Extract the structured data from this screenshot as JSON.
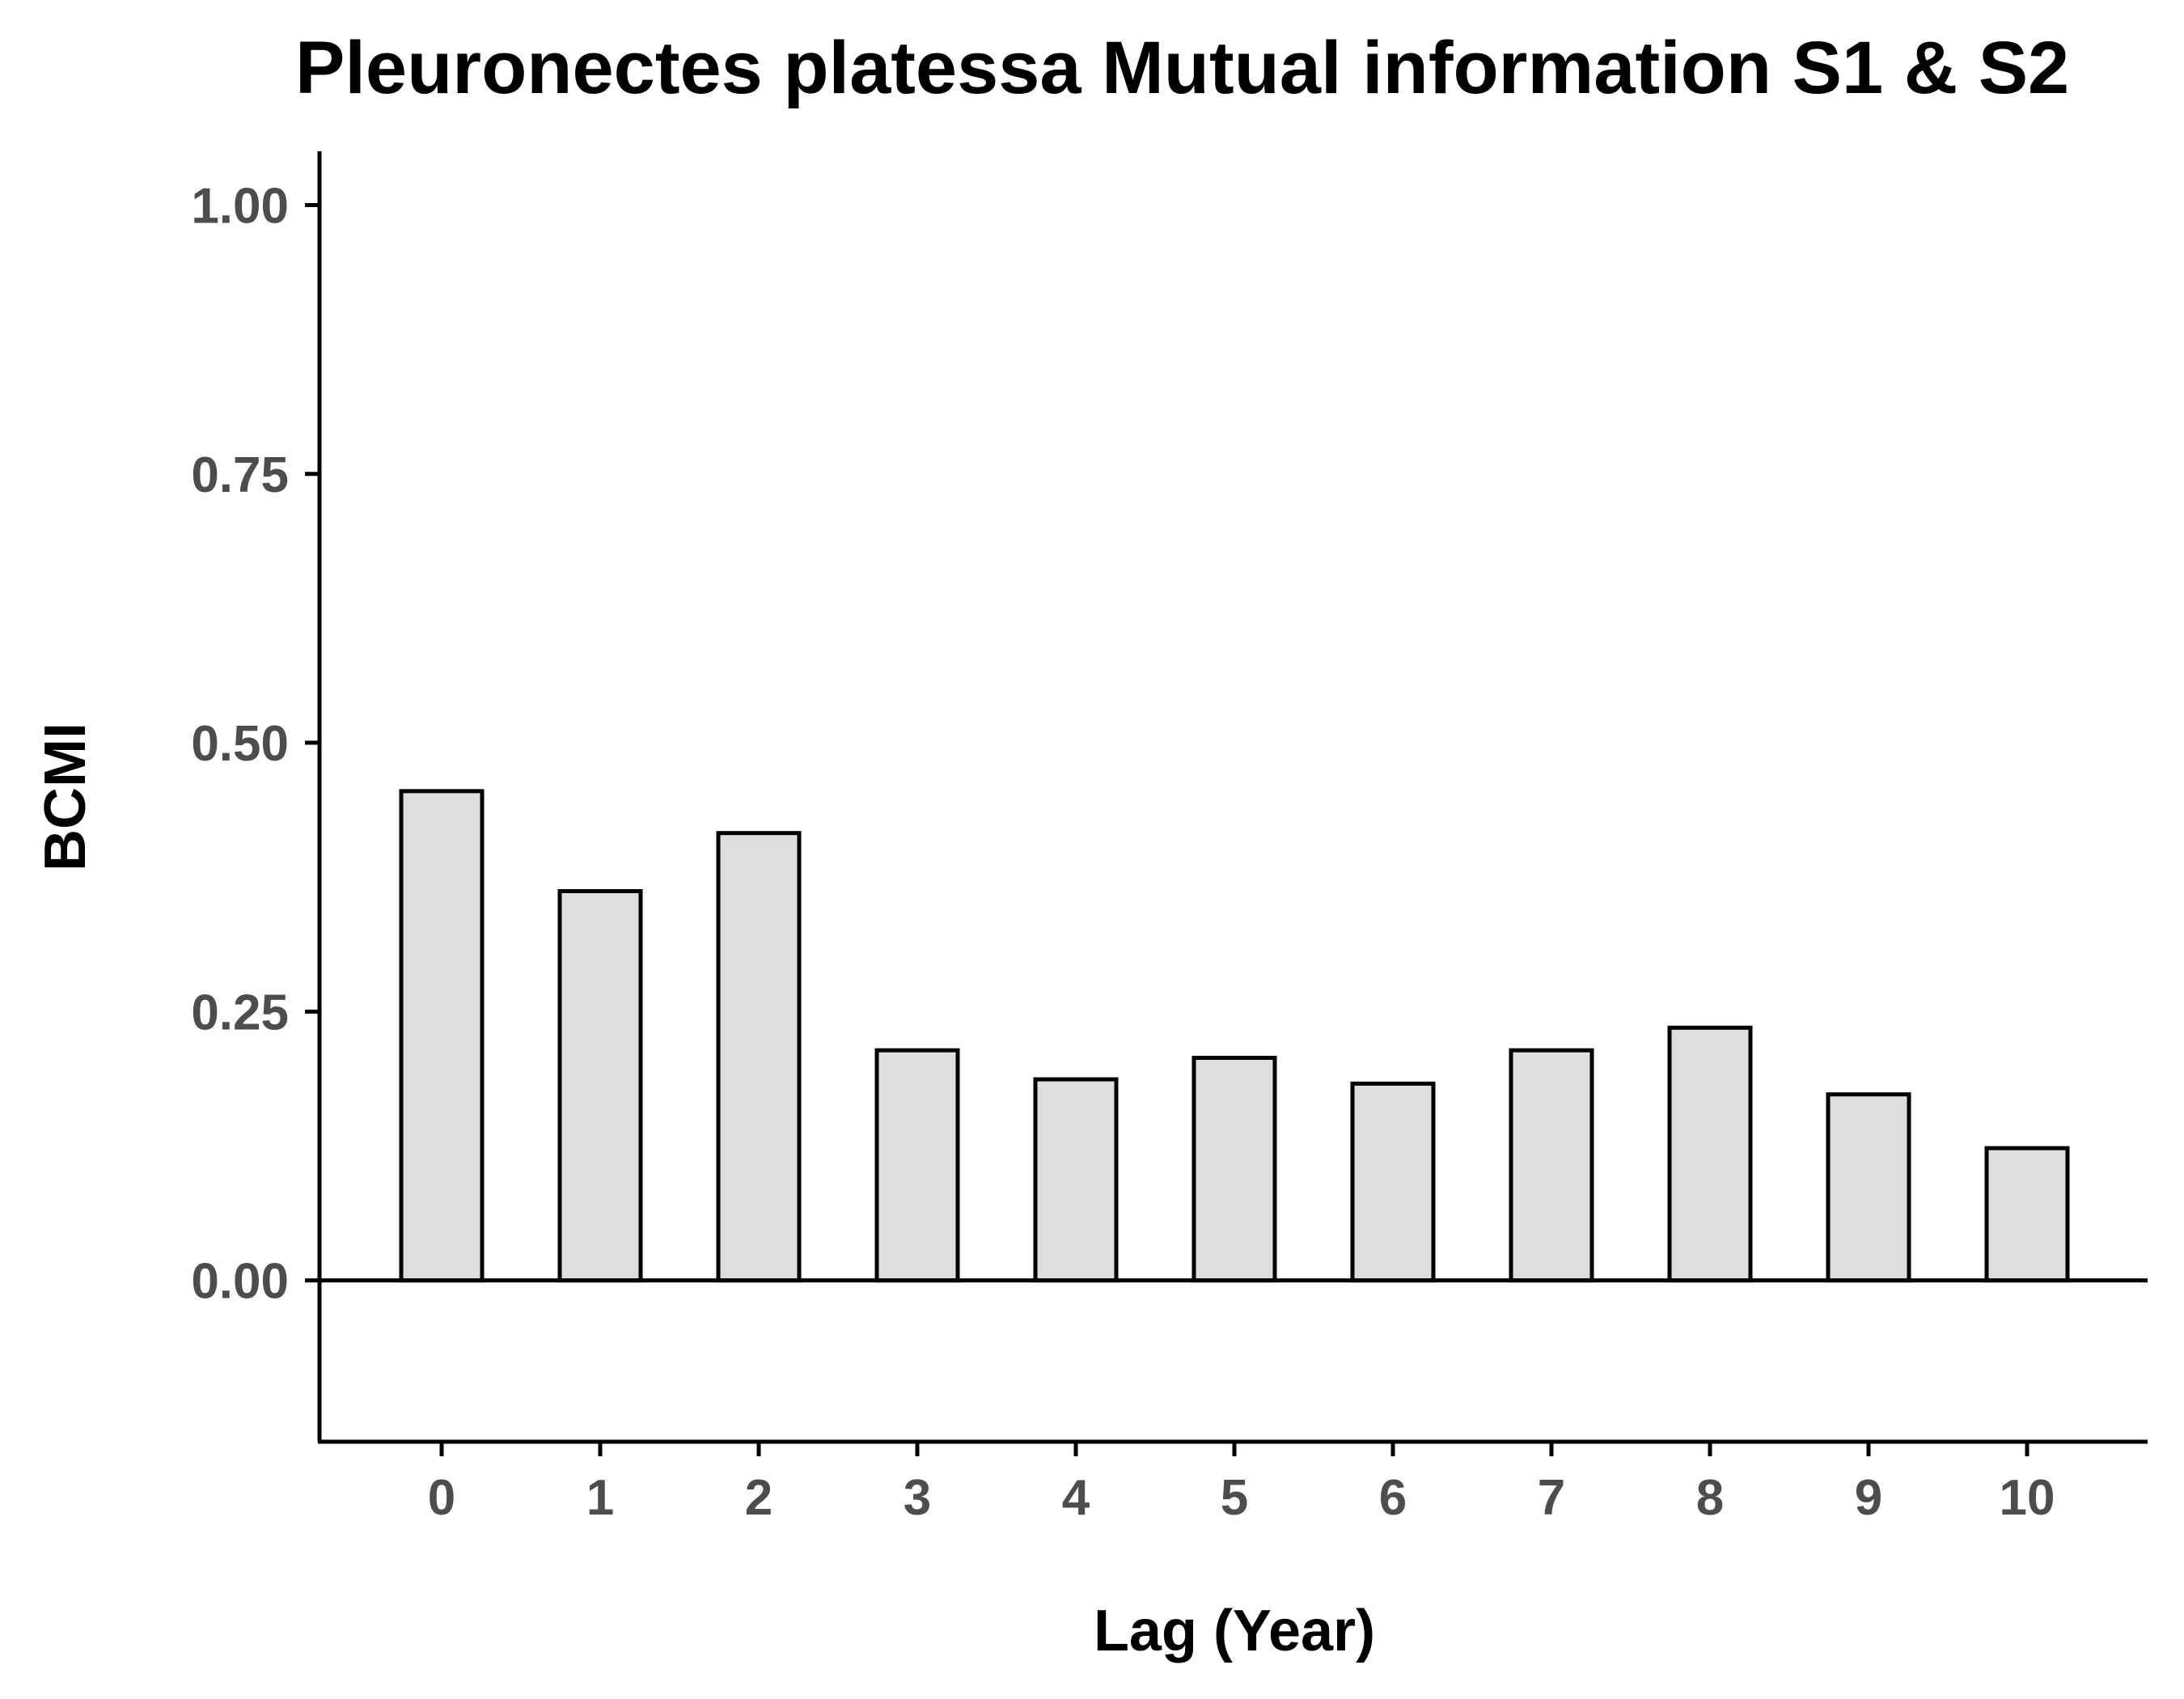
{
  "chart_data": {
    "type": "bar",
    "title": "Pleuronectes platessa Mutual information S1 & S2",
    "xlabel": "Lag (Year)",
    "ylabel": "BCMI",
    "categories": [
      "0",
      "1",
      "2",
      "3",
      "4",
      "5",
      "6",
      "7",
      "8",
      "9",
      "10"
    ],
    "values": [
      0.455,
      0.362,
      0.416,
      0.214,
      0.187,
      0.207,
      0.183,
      0.214,
      0.235,
      0.173,
      0.123
    ],
    "ylim": [
      -0.15,
      1.05
    ],
    "yticks": [
      "0.00",
      "0.25",
      "0.50",
      "0.75",
      "1.00"
    ],
    "grid": false,
    "legend": "none",
    "colors": {
      "bar_fill": "#dedede",
      "bar_stroke": "#000000",
      "axis": "#000000",
      "tick_text": "#4d4d4d"
    }
  }
}
